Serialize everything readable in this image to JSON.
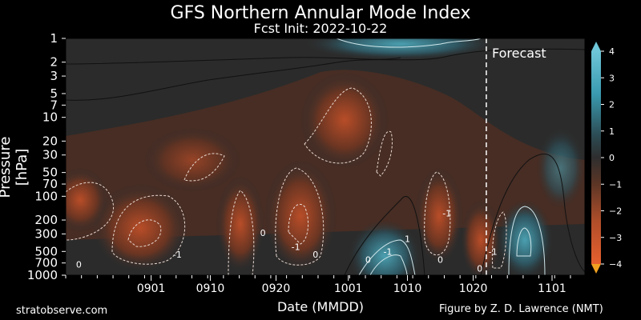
{
  "chart_data": {
    "type": "heatmap",
    "title": "GFS Northern Annular Mode Index",
    "subtitle": "Fcst Init: 2022-10-22",
    "xlabel": "Date (MMDD)",
    "ylabel": "Pressure [hPa]",
    "x_ticks": [
      "0901",
      "0910",
      "0920",
      "1001",
      "1010",
      "1020",
      "1101"
    ],
    "x_tick_days": [
      13,
      22,
      32,
      43,
      52,
      62,
      74
    ],
    "x_range_days": [
      0,
      79
    ],
    "y_ticks": [
      1,
      2,
      3,
      5,
      7,
      10,
      20,
      30,
      50,
      70,
      100,
      200,
      300,
      500,
      700,
      1000
    ],
    "y_scale": "log",
    "ylim": [
      1000,
      1
    ],
    "forecast_day": 64,
    "forecast_label": "Forecast",
    "colorbar_ticks": [
      4,
      3,
      2,
      1,
      0,
      -1,
      -2,
      -3,
      -4
    ],
    "colorbar_range": [
      -4,
      4
    ],
    "colors": {
      "positive": "#3a9bb0",
      "neutral": "#2e2e2e",
      "negative": "#d4582e"
    },
    "contour_labels": [
      {
        "text": "0",
        "day": 2,
        "p": 800
      },
      {
        "text": "-1",
        "day": 17,
        "p": 600
      },
      {
        "text": "0",
        "day": 46,
        "p": 700
      },
      {
        "text": "-1",
        "day": 49,
        "p": 550
      },
      {
        "text": "-1",
        "day": 65,
        "p": 550
      },
      {
        "text": "1",
        "day": 52,
        "p": 380
      },
      {
        "text": "0",
        "day": 57,
        "p": 700
      },
      {
        "text": "-1",
        "day": 58,
        "p": 180
      },
      {
        "text": "0",
        "day": 30,
        "p": 320
      },
      {
        "text": "-1",
        "day": 35,
        "p": 480
      },
      {
        "text": "0",
        "day": 38,
        "p": 600
      },
      {
        "text": "0",
        "day": 63,
        "p": 900
      }
    ]
  },
  "credits": {
    "left": "stratobserve.com",
    "right": "Figure by Z. D. Lawrence (NMT)"
  }
}
